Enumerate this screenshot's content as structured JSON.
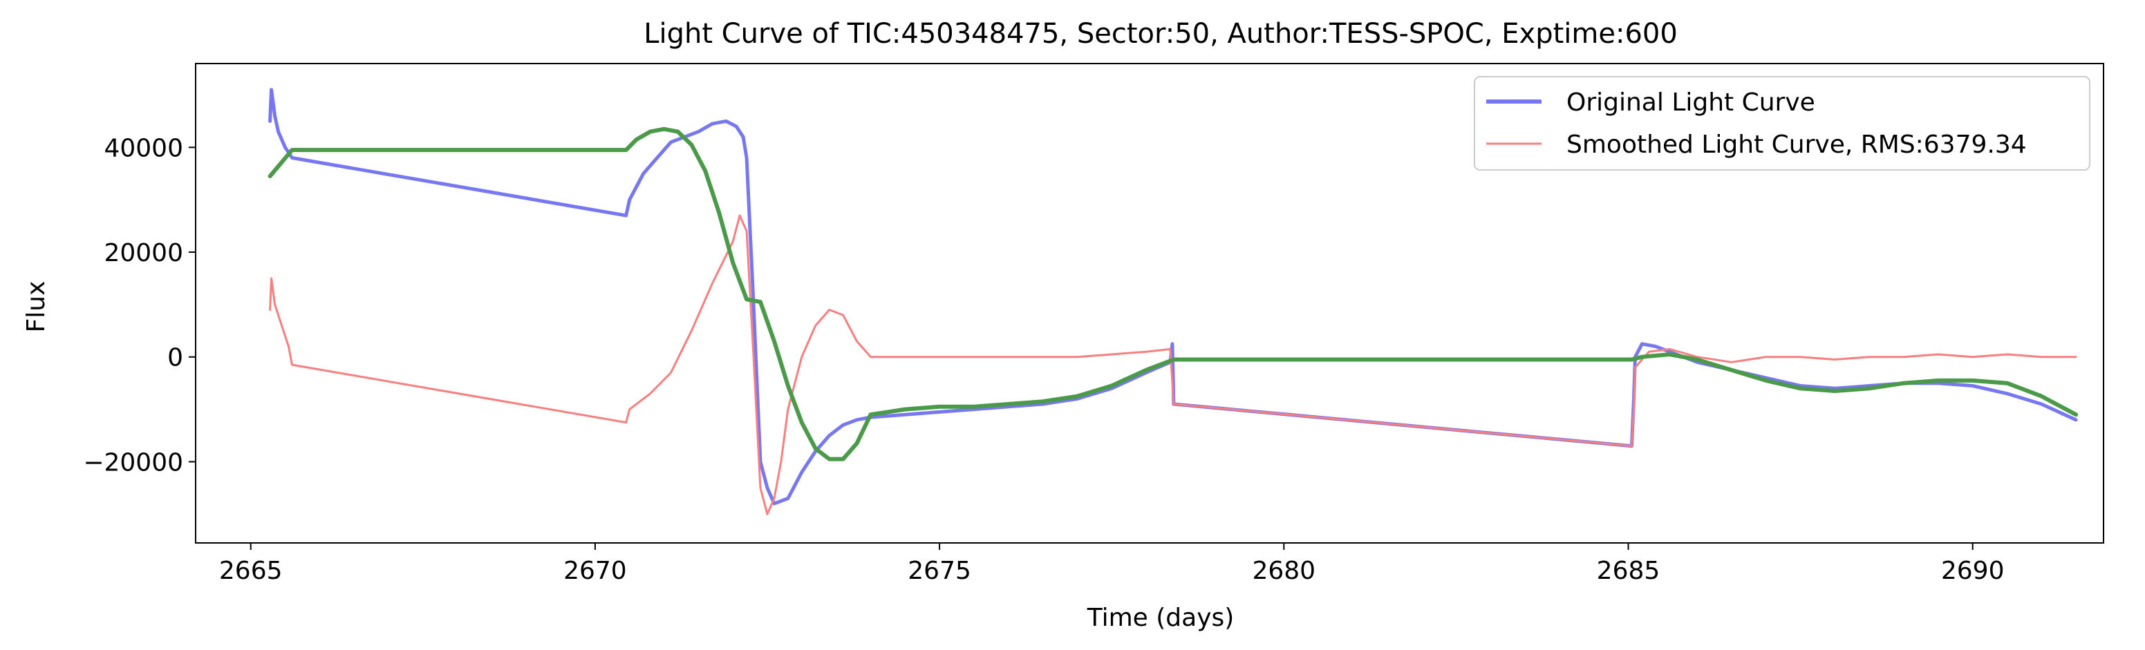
{
  "chart_data": {
    "type": "line",
    "title": "Light Curve of TIC:450348475, Sector:50, Author:TESS-SPOC, Exptime:600",
    "xlabel": "Time (days)",
    "ylabel": "Flux",
    "xlim": [
      2664.2,
      2691.9
    ],
    "ylim": [
      -35500,
      56000
    ],
    "x_ticks": [
      2665,
      2670,
      2675,
      2680,
      2685,
      2690
    ],
    "x_tick_labels": [
      "2665",
      "2670",
      "2675",
      "2680",
      "2685",
      "2690"
    ],
    "y_ticks": [
      -20000,
      0,
      20000,
      40000
    ],
    "y_tick_labels": [
      "−20000",
      "0",
      "20000",
      "40000"
    ],
    "grid": false,
    "legend": {
      "placement": "top-right",
      "entries": [
        "Original Light Curve",
        "Smoothed Light Curve, RMS:6379.34"
      ]
    },
    "colors": {
      "original": "#7777f2",
      "smoothed": "#f77f7f",
      "trend": "#4a9a4a"
    },
    "series": [
      {
        "name": "Original Light Curve",
        "x": [
          2665.28,
          2665.3,
          2665.35,
          2665.4,
          2665.5,
          2665.6,
          2670.45,
          2670.5,
          2670.7,
          2670.9,
          2671.1,
          2671.3,
          2671.5,
          2671.7,
          2671.9,
          2672.05,
          2672.15,
          2672.2,
          2672.3,
          2672.4,
          2672.5,
          2672.6,
          2672.8,
          2673.0,
          2673.2,
          2673.4,
          2673.6,
          2673.8,
          2674.0,
          2674.5,
          2675.0,
          2675.5,
          2676.0,
          2676.5,
          2677.0,
          2677.5,
          2678.0,
          2678.35,
          2678.38,
          2678.4,
          2685.05,
          2685.08,
          2685.1,
          2685.2,
          2685.4,
          2685.6,
          2685.8,
          2686.0,
          2686.5,
          2687.0,
          2687.5,
          2688.0,
          2688.5,
          2689.0,
          2689.5,
          2690.0,
          2690.5,
          2691.0,
          2691.5
        ],
        "values": [
          45000,
          51000,
          46000,
          43000,
          40000,
          38000,
          27000,
          30000,
          35000,
          38000,
          41000,
          42000,
          43000,
          44500,
          45000,
          44000,
          42000,
          38000,
          10000,
          -20000,
          -25000,
          -28000,
          -27000,
          -22000,
          -18000,
          -15000,
          -13000,
          -12000,
          -11500,
          -11000,
          -10500,
          -10000,
          -9500,
          -9000,
          -8000,
          -6000,
          -3000,
          -1000,
          2500,
          -9000,
          -17000,
          -8000,
          0,
          2500,
          2000,
          1000,
          0,
          -1000,
          -2500,
          -4000,
          -5500,
          -6000,
          -5500,
          -5000,
          -5000,
          -5500,
          -7000,
          -9000,
          -12000
        ]
      },
      {
        "name": "Smoothed Light Curve, RMS:6379.34",
        "x": [
          2665.28,
          2665.3,
          2665.35,
          2665.45,
          2665.55,
          2665.6,
          2670.45,
          2670.5,
          2670.8,
          2671.1,
          2671.4,
          2671.7,
          2672.0,
          2672.1,
          2672.2,
          2672.3,
          2672.4,
          2672.5,
          2672.6,
          2672.7,
          2672.8,
          2673.0,
          2673.2,
          2673.4,
          2673.6,
          2673.8,
          2674.0,
          2674.5,
          2675.0,
          2676.0,
          2677.0,
          2677.5,
          2678.0,
          2678.35,
          2678.4,
          2685.05,
          2685.08,
          2685.1,
          2685.3,
          2685.6,
          2686.0,
          2686.5,
          2687.0,
          2687.5,
          2688.0,
          2688.5,
          2689.0,
          2689.5,
          2690.0,
          2690.5,
          2691.0,
          2691.5
        ],
        "values": [
          9000,
          15000,
          10000,
          6000,
          2000,
          -1500,
          -12500,
          -10000,
          -7000,
          -3000,
          5000,
          14000,
          22000,
          27000,
          24000,
          0,
          -25000,
          -30000,
          -27000,
          -20000,
          -10000,
          0,
          6000,
          9000,
          8000,
          3000,
          0,
          0,
          0,
          0,
          0,
          500,
          1000,
          1500,
          -9000,
          -17000,
          -10000,
          -2000,
          1000,
          1500,
          0,
          -1000,
          0,
          0,
          -500,
          0,
          0,
          500,
          0,
          500,
          0,
          0
        ]
      },
      {
        "name": "",
        "x": [
          2665.28,
          2665.6,
          2670.45,
          2670.6,
          2670.8,
          2671.0,
          2671.2,
          2671.4,
          2671.6,
          2671.8,
          2672.0,
          2672.2,
          2672.4,
          2672.6,
          2672.8,
          2673.0,
          2673.2,
          2673.4,
          2673.6,
          2673.8,
          2674.0,
          2674.5,
          2675.0,
          2675.5,
          2676.0,
          2676.5,
          2677.0,
          2677.5,
          2678.0,
          2678.4,
          2685.05,
          2685.2,
          2685.6,
          2686.0,
          2686.5,
          2687.0,
          2687.5,
          2688.0,
          2688.5,
          2689.0,
          2689.5,
          2690.0,
          2690.5,
          2691.0,
          2691.5
        ],
        "values": [
          34500,
          39500,
          39500,
          41500,
          43000,
          43500,
          43000,
          40500,
          35500,
          27500,
          18000,
          11000,
          10500,
          3000,
          -5500,
          -12500,
          -17500,
          -19500,
          -19500,
          -16500,
          -11000,
          -10000,
          -9500,
          -9500,
          -9000,
          -8500,
          -7500,
          -5500,
          -2500,
          -500,
          -500,
          0,
          500,
          -500,
          -2500,
          -4500,
          -6000,
          -6500,
          -6000,
          -5000,
          -4500,
          -4500,
          -5000,
          -7500,
          -11000
        ]
      }
    ]
  }
}
